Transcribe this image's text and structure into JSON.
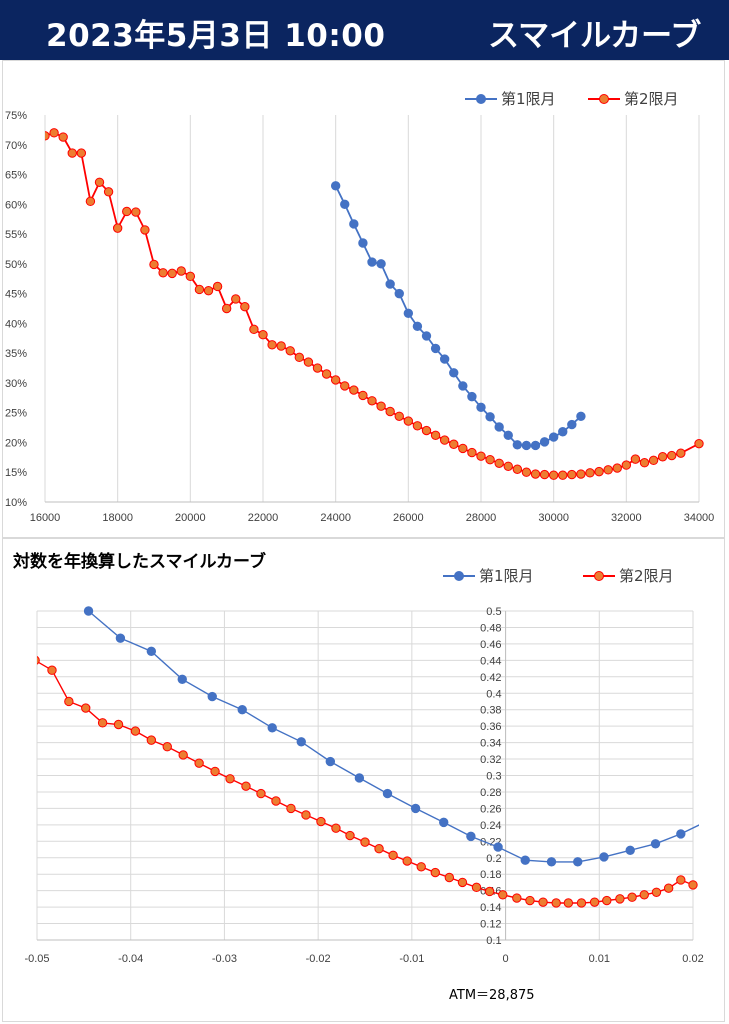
{
  "header": {
    "title": "2023年5月3日 10:00",
    "subtitle": "スマイルカーブ"
  },
  "colors": {
    "series1": "#4472c4",
    "series2": "#ff0000",
    "series2_marker": "#ed7d31",
    "header_bg": "#0b2560",
    "grid": "#d9d9d9"
  },
  "atm_label": "ATM＝28,875",
  "chart_data": [
    {
      "type": "line",
      "title": "",
      "xlabel": "",
      "ylabel": "",
      "xlim": [
        16000,
        34000
      ],
      "ylim": [
        0.1,
        0.75
      ],
      "x_ticks": [
        16000,
        18000,
        20000,
        22000,
        24000,
        26000,
        28000,
        30000,
        32000,
        34000
      ],
      "x_tick_labels": [
        "16000",
        "18000",
        "20000",
        "22000",
        "24000",
        "26000",
        "28000",
        "30000",
        "32000",
        "34000"
      ],
      "y_ticks": [
        0.1,
        0.15,
        0.2,
        0.25,
        0.3,
        0.35,
        0.4,
        0.45,
        0.5,
        0.55,
        0.6,
        0.65,
        0.7,
        0.75
      ],
      "y_tick_labels": [
        "10%",
        "15%",
        "20%",
        "25%",
        "30%",
        "35%",
        "40%",
        "45%",
        "50%",
        "55%",
        "60%",
        "65%",
        "70%",
        "75%"
      ],
      "grid": "vertical",
      "legend": "top-right",
      "series": [
        {
          "name": "第1限月",
          "x": [
            24000,
            24250,
            24500,
            24750,
            25000,
            25250,
            25500,
            25750,
            26000,
            26250,
            26500,
            26750,
            27000,
            27250,
            27500,
            27750,
            28000,
            28250,
            28500,
            28750,
            29000,
            29250,
            29500,
            29750,
            30000,
            30250,
            30500,
            30750
          ],
          "values": [
            0.631,
            0.6,
            0.567,
            0.535,
            0.503,
            0.5,
            0.466,
            0.45,
            0.417,
            0.395,
            0.379,
            0.358,
            0.34,
            0.317,
            0.295,
            0.277,
            0.259,
            0.243,
            0.226,
            0.212,
            0.196,
            0.195,
            0.195,
            0.201,
            0.209,
            0.218,
            0.23,
            0.244
          ]
        },
        {
          "name": "第2限月",
          "x": [
            16000,
            16250,
            16500,
            16750,
            17000,
            17250,
            17500,
            17750,
            18000,
            18250,
            18500,
            18750,
            19000,
            19250,
            19500,
            19750,
            20000,
            20250,
            20500,
            20750,
            21000,
            21250,
            21500,
            21750,
            22000,
            22250,
            22500,
            22750,
            23000,
            23250,
            23500,
            23750,
            24000,
            24250,
            24500,
            24750,
            25000,
            25250,
            25500,
            25750,
            26000,
            26250,
            26500,
            26750,
            27000,
            27250,
            27500,
            27750,
            28000,
            28250,
            28500,
            28750,
            29000,
            29250,
            29500,
            29750,
            30000,
            30250,
            30500,
            30750,
            31000,
            31250,
            31500,
            31750,
            32000,
            32250,
            32500,
            32750,
            33000,
            33250,
            33500,
            34000
          ],
          "values": [
            0.715,
            0.72,
            0.713,
            0.686,
            0.686,
            0.605,
            0.637,
            0.621,
            0.56,
            0.588,
            0.587,
            0.557,
            0.499,
            0.485,
            0.484,
            0.488,
            0.479,
            0.457,
            0.455,
            0.462,
            0.425,
            0.441,
            0.428,
            0.39,
            0.381,
            0.364,
            0.362,
            0.354,
            0.343,
            0.335,
            0.325,
            0.315,
            0.305,
            0.295,
            0.288,
            0.279,
            0.27,
            0.261,
            0.252,
            0.244,
            0.236,
            0.228,
            0.22,
            0.212,
            0.204,
            0.197,
            0.19,
            0.183,
            0.177,
            0.171,
            0.165,
            0.16,
            0.155,
            0.15,
            0.147,
            0.146,
            0.145,
            0.145,
            0.146,
            0.147,
            0.149,
            0.151,
            0.154,
            0.157,
            0.162,
            0.172,
            0.166,
            0.17,
            0.176,
            0.178,
            0.182,
            0.198
          ]
        }
      ]
    },
    {
      "type": "line",
      "title": "対数を年換算したスマイルカーブ",
      "xlabel": "",
      "ylabel": "",
      "xlim": [
        -0.05,
        0.02
      ],
      "ylim": [
        0.1,
        0.5
      ],
      "x_ticks": [
        -0.05,
        -0.04,
        -0.03,
        -0.02,
        -0.01,
        0,
        0.01,
        0.02
      ],
      "x_tick_labels": [
        "-0.05",
        "-0.04",
        "-0.03",
        "-0.02",
        "-0.01",
        "0",
        "0.01",
        "0.02"
      ],
      "y_ticks": [
        0.1,
        0.12,
        0.14,
        0.16,
        0.18,
        0.2,
        0.22,
        0.24,
        0.26,
        0.28,
        0.3,
        0.32,
        0.34,
        0.36,
        0.38,
        0.4,
        0.42,
        0.44,
        0.46,
        0.48,
        0.5
      ],
      "y_tick_labels": [
        "0.1",
        "0.12",
        "0.14",
        "0.16",
        "0.18",
        "0.2",
        "0.22",
        "0.24",
        "0.26",
        "0.28",
        "0.3",
        "0.32",
        "0.34",
        "0.36",
        "0.38",
        "0.4",
        "0.42",
        "0.44",
        "0.46",
        "0.48",
        "0.5"
      ],
      "grid": "both",
      "legend": "top-right",
      "series": [
        {
          "name": "第1限月",
          "x": [
            -0.0445,
            -0.0411,
            -0.0378,
            -0.0345,
            -0.0313,
            -0.0281,
            -0.0249,
            -0.0218,
            -0.0187,
            -0.0156,
            -0.0126,
            -0.0096,
            -0.0066,
            -0.0037,
            -0.0008,
            0.0021,
            0.0049,
            0.0077,
            0.0105,
            0.0133,
            0.016,
            0.0187,
            0.0214
          ],
          "values": [
            0.5,
            0.467,
            0.451,
            0.417,
            0.396,
            0.38,
            0.358,
            0.341,
            0.317,
            0.297,
            0.278,
            0.26,
            0.243,
            0.226,
            0.213,
            0.197,
            0.195,
            0.195,
            0.201,
            0.209,
            0.217,
            0.229,
            0.244
          ]
        },
        {
          "name": "第2限月",
          "x": [
            -0.0502,
            -0.0484,
            -0.0466,
            -0.0448,
            -0.043,
            -0.0413,
            -0.0395,
            -0.0378,
            -0.0361,
            -0.0344,
            -0.0327,
            -0.031,
            -0.0294,
            -0.0277,
            -0.0261,
            -0.0245,
            -0.0229,
            -0.0213,
            -0.0197,
            -0.0181,
            -0.0166,
            -0.015,
            -0.0135,
            -0.012,
            -0.0105,
            -0.009,
            -0.0075,
            -0.006,
            -0.0046,
            -0.0031,
            -0.0017,
            -0.0003,
            0.0012,
            0.0026,
            0.004,
            0.0054,
            0.0067,
            0.0081,
            0.0095,
            0.0108,
            0.0122,
            0.0135,
            0.0148,
            0.0161,
            0.0174,
            0.0187,
            0.02
          ],
          "values": [
            0.44,
            0.428,
            0.39,
            0.382,
            0.364,
            0.362,
            0.354,
            0.343,
            0.335,
            0.325,
            0.315,
            0.305,
            0.296,
            0.287,
            0.278,
            0.269,
            0.26,
            0.252,
            0.244,
            0.236,
            0.227,
            0.219,
            0.211,
            0.203,
            0.196,
            0.189,
            0.182,
            0.176,
            0.17,
            0.164,
            0.159,
            0.155,
            0.151,
            0.148,
            0.146,
            0.145,
            0.145,
            0.145,
            0.146,
            0.148,
            0.15,
            0.152,
            0.155,
            0.158,
            0.163,
            0.173,
            0.167
          ]
        }
      ]
    }
  ]
}
